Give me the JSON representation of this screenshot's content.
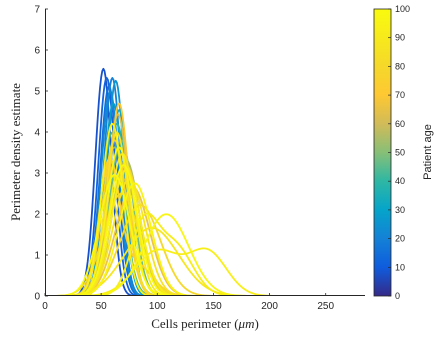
{
  "chart_data": {
    "type": "line",
    "title": "",
    "xlabel": "Cells perimeter (μm)",
    "ylabel": "Perimeter density estimate",
    "xlim": [
      0,
      285
    ],
    "ylim": [
      0,
      7
    ],
    "xticks": [
      0,
      50,
      100,
      150,
      200,
      250
    ],
    "yticks": [
      0,
      1,
      2,
      3,
      4,
      5,
      6,
      7
    ],
    "grid": false,
    "colorbar": {
      "label": "Patient age",
      "range": [
        0,
        100
      ],
      "ticks": [
        0,
        10,
        20,
        30,
        40,
        50,
        60,
        70,
        80,
        90,
        100
      ],
      "colormap": "parula"
    },
    "series": [
      {
        "age": 8,
        "components": [
          {
            "mu": 52,
            "sigma": 7.2,
            "w": 1.0
          }
        ]
      },
      {
        "age": 12,
        "components": [
          {
            "mu": 55,
            "sigma": 7.5,
            "w": 1.0
          }
        ]
      },
      {
        "age": 15,
        "components": [
          {
            "mu": 57,
            "sigma": 7.8,
            "w": 1.0
          }
        ]
      },
      {
        "age": 20,
        "components": [
          {
            "mu": 60,
            "sigma": 7.5,
            "w": 1.0
          }
        ]
      },
      {
        "age": 22,
        "components": [
          {
            "mu": 58,
            "sigma": 8.0,
            "w": 1.0
          }
        ]
      },
      {
        "age": 25,
        "components": [
          {
            "mu": 63,
            "sigma": 7.6,
            "w": 1.0
          }
        ]
      },
      {
        "age": 28,
        "components": [
          {
            "mu": 61,
            "sigma": 8.5,
            "w": 1.0
          }
        ]
      },
      {
        "age": 33,
        "components": [
          {
            "mu": 66,
            "sigma": 8.8,
            "w": 1.0
          }
        ]
      },
      {
        "age": 38,
        "components": [
          {
            "mu": 64,
            "sigma": 9.5,
            "w": 1.0
          }
        ]
      },
      {
        "age": 42,
        "components": [
          {
            "mu": 60,
            "sigma": 10.0,
            "w": 1.0
          }
        ]
      },
      {
        "age": 47,
        "components": [
          {
            "mu": 68,
            "sigma": 10.5,
            "w": 1.0
          }
        ]
      },
      {
        "age": 52,
        "components": [
          {
            "mu": 62,
            "sigma": 11.0,
            "w": 1.0
          }
        ]
      },
      {
        "age": 55,
        "components": [
          {
            "mu": 72,
            "sigma": 12.0,
            "w": 1.0
          }
        ]
      },
      {
        "age": 58,
        "components": [
          {
            "mu": 70,
            "sigma": 14.0,
            "w": 1.0
          }
        ]
      },
      {
        "age": 62,
        "components": [
          {
            "mu": 65,
            "sigma": 9.0,
            "w": 1.0
          }
        ]
      },
      {
        "age": 66,
        "components": [
          {
            "mu": 78,
            "sigma": 15.0,
            "w": 1.0
          }
        ]
      },
      {
        "age": 70,
        "components": [
          {
            "mu": 66,
            "sigma": 8.5,
            "w": 1.0
          }
        ]
      },
      {
        "age": 73,
        "components": [
          {
            "mu": 57,
            "sigma": 9.0,
            "w": 0.7
          },
          {
            "mu": 80,
            "sigma": 15.0,
            "w": 0.3
          }
        ]
      },
      {
        "age": 75,
        "components": [
          {
            "mu": 62,
            "sigma": 10.5,
            "w": 1.0
          }
        ]
      },
      {
        "age": 78,
        "components": [
          {
            "mu": 72,
            "sigma": 12.5,
            "w": 1.0
          }
        ]
      },
      {
        "age": 80,
        "components": [
          {
            "mu": 85,
            "sigma": 18.0,
            "w": 1.0
          }
        ]
      },
      {
        "age": 82,
        "components": [
          {
            "mu": 68,
            "sigma": 16.0,
            "w": 1.0
          }
        ]
      },
      {
        "age": 84,
        "components": [
          {
            "mu": 64,
            "sigma": 10.0,
            "w": 1.0
          }
        ]
      },
      {
        "age": 86,
        "components": [
          {
            "mu": 75,
            "sigma": 14.0,
            "w": 1.0
          }
        ]
      },
      {
        "age": 88,
        "components": [
          {
            "mu": 95,
            "sigma": 24.0,
            "w": 1.0
          }
        ]
      },
      {
        "age": 90,
        "components": [
          {
            "mu": 69,
            "sigma": 11.5,
            "w": 1.0
          }
        ]
      },
      {
        "age": 91,
        "components": [
          {
            "mu": 72,
            "sigma": 13.0,
            "w": 1.0
          }
        ]
      },
      {
        "age": 92,
        "components": [
          {
            "mu": 88,
            "sigma": 12.0,
            "w": 0.5
          },
          {
            "mu": 115,
            "sigma": 16.0,
            "w": 0.5
          }
        ]
      },
      {
        "age": 93,
        "components": [
          {
            "mu": 100,
            "sigma": 20.0,
            "w": 0.55
          },
          {
            "mu": 145,
            "sigma": 17.0,
            "w": 0.45
          }
        ]
      },
      {
        "age": 94,
        "components": [
          {
            "mu": 60,
            "sigma": 9.5,
            "w": 1.0
          }
        ]
      },
      {
        "age": 95,
        "components": [
          {
            "mu": 66,
            "sigma": 11.0,
            "w": 1.0
          }
        ]
      },
      {
        "age": 96,
        "components": [
          {
            "mu": 80,
            "sigma": 14.5,
            "w": 1.0
          }
        ]
      },
      {
        "age": 97,
        "components": [
          {
            "mu": 108,
            "sigma": 20.0,
            "w": 1.0
          }
        ]
      },
      {
        "age": 98,
        "components": [
          {
            "mu": 70,
            "sigma": 12.5,
            "w": 1.0
          }
        ]
      },
      {
        "age": 99,
        "components": [
          {
            "mu": 62,
            "sigma": 13.5,
            "w": 1.0
          }
        ]
      }
    ]
  }
}
